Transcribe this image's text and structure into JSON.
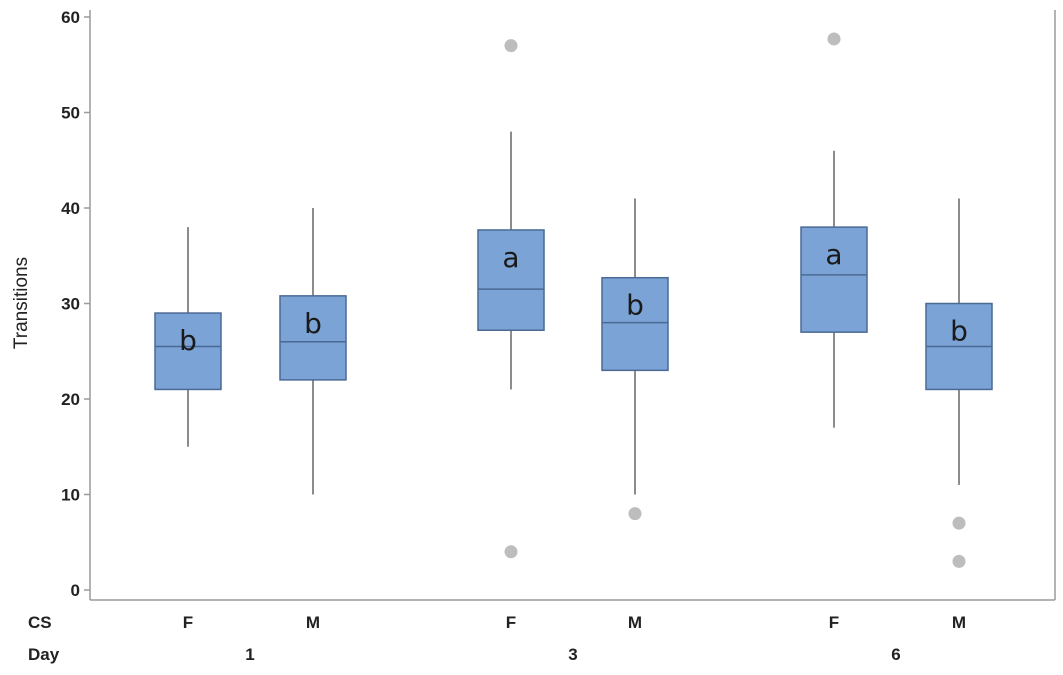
{
  "chart_data": {
    "type": "boxplot",
    "ylabel": "Transitions",
    "ylim": [
      0,
      60
    ],
    "yticks": [
      "0",
      "10",
      "20",
      "30",
      "40",
      "50",
      "60"
    ],
    "grid": false,
    "row_labels": {
      "cs": "CS",
      "day": "Day"
    },
    "groups": [
      {
        "day": "1",
        "boxes": [
          {
            "cs": "F",
            "min": 15,
            "q1": 21,
            "median": 25.5,
            "q3": 29,
            "max": 38,
            "outliers": [],
            "letter": "b"
          },
          {
            "cs": "M",
            "min": 10,
            "q1": 22,
            "median": 26,
            "q3": 30.8,
            "max": 40,
            "outliers": [],
            "letter": "b"
          }
        ]
      },
      {
        "day": "3",
        "boxes": [
          {
            "cs": "F",
            "min": 21,
            "q1": 27.2,
            "median": 31.5,
            "q3": 37.7,
            "max": 48,
            "outliers": [
              57,
              4
            ],
            "letter": "a"
          },
          {
            "cs": "M",
            "min": 10,
            "q1": 23,
            "median": 28,
            "q3": 32.7,
            "max": 41,
            "outliers": [
              8
            ],
            "letter": "b"
          }
        ]
      },
      {
        "day": "6",
        "boxes": [
          {
            "cs": "F",
            "min": 17,
            "q1": 27,
            "median": 33,
            "q3": 38,
            "max": 46,
            "outliers": [
              57.7
            ],
            "letter": "a"
          },
          {
            "cs": "M",
            "min": 11,
            "q1": 21,
            "median": 25.5,
            "q3": 30,
            "max": 41,
            "outliers": [
              7,
              3
            ],
            "letter": "b"
          }
        ]
      }
    ],
    "colors": {
      "box_fill": "#7ba3d6",
      "box_stroke": "#4a6a94",
      "whisker": "#8c8c8c",
      "outlier": "#bdbdbd",
      "axis": "#9a9a9a"
    }
  }
}
